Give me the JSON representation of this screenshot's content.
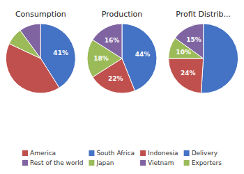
{
  "chart_data": [
    {
      "type": "pie",
      "title": "Consumption",
      "values": [
        41,
        41,
        8,
        10
      ],
      "value_labels": [
        "41%",
        null,
        null,
        null
      ],
      "colors": [
        "#4472C4",
        "#C0504D",
        "#9BBB59",
        "#8064A2"
      ],
      "data_labels": true
    },
    {
      "type": "pie",
      "title": "Production",
      "values": [
        44,
        22,
        18,
        16
      ],
      "value_labels": [
        "44%",
        "22%",
        "18%",
        "16%"
      ],
      "colors": [
        "#4472C4",
        "#C0504D",
        "#9BBB59",
        "#8064A2"
      ],
      "data_labels": true
    },
    {
      "type": "pie",
      "title": "Profit Distrib...",
      "values": [
        51,
        24,
        10,
        15
      ],
      "value_labels": [
        null,
        "24%",
        "10%",
        "15%"
      ],
      "colors": [
        "#4472C4",
        "#C0504D",
        "#9BBB59",
        "#8064A2"
      ],
      "data_labels": true
    },
    {
      "type": "legend",
      "series": [
        {
          "name": "America",
          "color": "#C0504D"
        },
        {
          "name": "Rest of the world",
          "color": "#8064A2"
        },
        {
          "name": "South Africa",
          "color": "#4472C4"
        },
        {
          "name": "Japan",
          "color": "#9BBB59"
        },
        {
          "name": "Indonesia",
          "color": "#C0504D"
        },
        {
          "name": "Vietnam",
          "color": "#8064A2"
        },
        {
          "name": "Delivery",
          "color": "#4472C4"
        },
        {
          "name": "Exporters",
          "color": "#9BBB59"
        }
      ]
    }
  ]
}
